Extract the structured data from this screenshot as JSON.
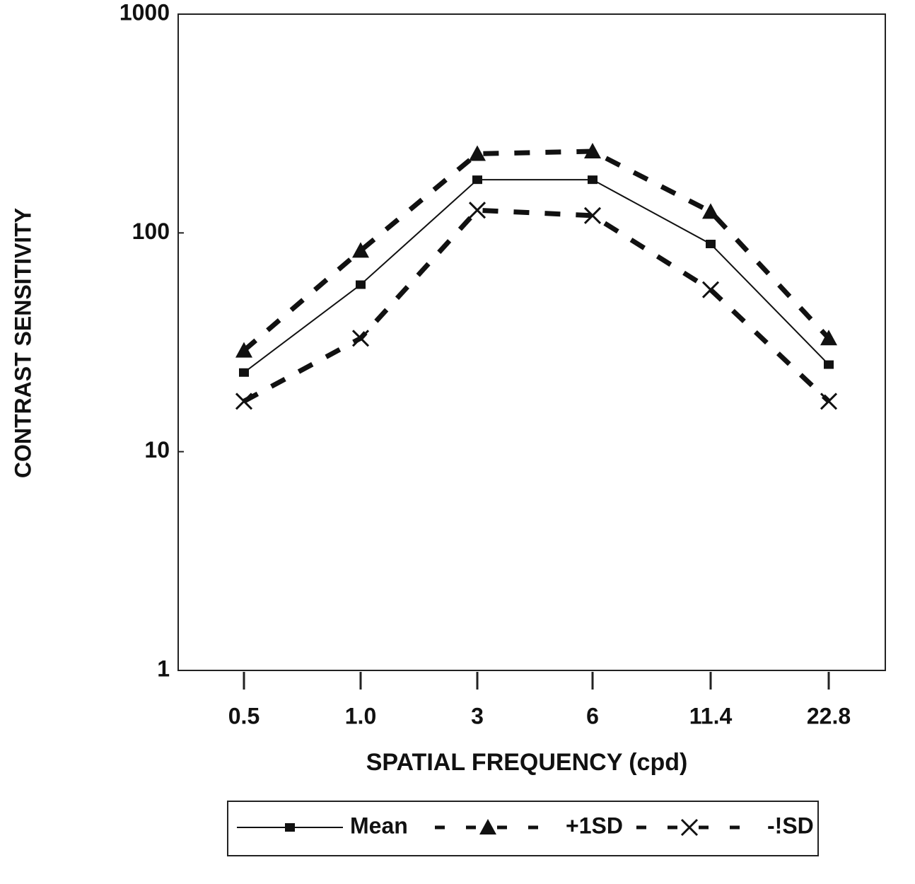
{
  "chart_data": {
    "type": "line",
    "x_label": "SPATIAL FREQUENCY (cpd)",
    "y_label": "CONTRAST SENSITIVITY",
    "categories": [
      "0.5",
      "1.0",
      "3",
      "6",
      "11.4",
      "22.8"
    ],
    "series": [
      {
        "name": "Mean",
        "color": "#111111",
        "marker": "square",
        "line": "solid",
        "values": [
          23,
          58,
          175,
          175,
          89,
          25
        ]
      },
      {
        "name": "+1SD",
        "color": "#111111",
        "marker": "triangle",
        "line": "dashed",
        "values": [
          29,
          83,
          230,
          236,
          125,
          33
        ]
      },
      {
        "name": "-!SD",
        "color": "#111111",
        "marker": "x",
        "line": "dashed",
        "values": [
          17,
          33,
          127,
          120,
          55,
          17
        ]
      }
    ],
    "ylim": [
      1,
      1000
    ],
    "yticks": [
      1,
      10,
      100,
      1000
    ],
    "log_y": true,
    "legend": "bottom"
  }
}
